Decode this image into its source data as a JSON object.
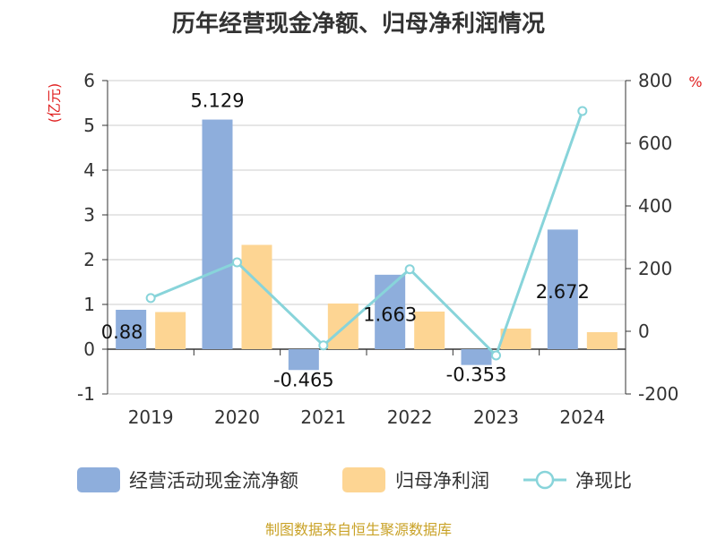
{
  "chart_data": {
    "type": "bar",
    "title": "历年经营现金净额、归母净利润情况",
    "categories": [
      "2019",
      "2020",
      "2021",
      "2022",
      "2023",
      "2024"
    ],
    "series": [
      {
        "name": "经营活动现金流净额",
        "type": "bar",
        "axis": "left",
        "color": "#8eaedc",
        "values": [
          0.88,
          5.129,
          -0.465,
          1.663,
          -0.353,
          2.672
        ],
        "labels": [
          "0.88",
          "5.129",
          "-0.465",
          "1.663",
          "-0.353",
          "2.672"
        ]
      },
      {
        "name": "归母净利润",
        "type": "bar",
        "axis": "left",
        "color": "#fdd593",
        "values": [
          0.83,
          2.33,
          1.02,
          0.84,
          0.46,
          0.38
        ]
      },
      {
        "name": "净现比",
        "type": "line",
        "axis": "right",
        "color": "#88d4da",
        "values": [
          106,
          220,
          -45,
          198,
          -77,
          703
        ]
      }
    ],
    "y_left": {
      "unit": "(亿元)",
      "min": -1,
      "max": 6,
      "ticks": [
        -1,
        0,
        1,
        2,
        3,
        4,
        5,
        6
      ]
    },
    "y_right": {
      "unit": "%",
      "min": -200,
      "max": 800,
      "ticks": [
        -200,
        0,
        200,
        400,
        600,
        800
      ]
    },
    "legend_position": "bottom",
    "grid": true
  },
  "source": "制图数据来自恒生聚源数据库"
}
